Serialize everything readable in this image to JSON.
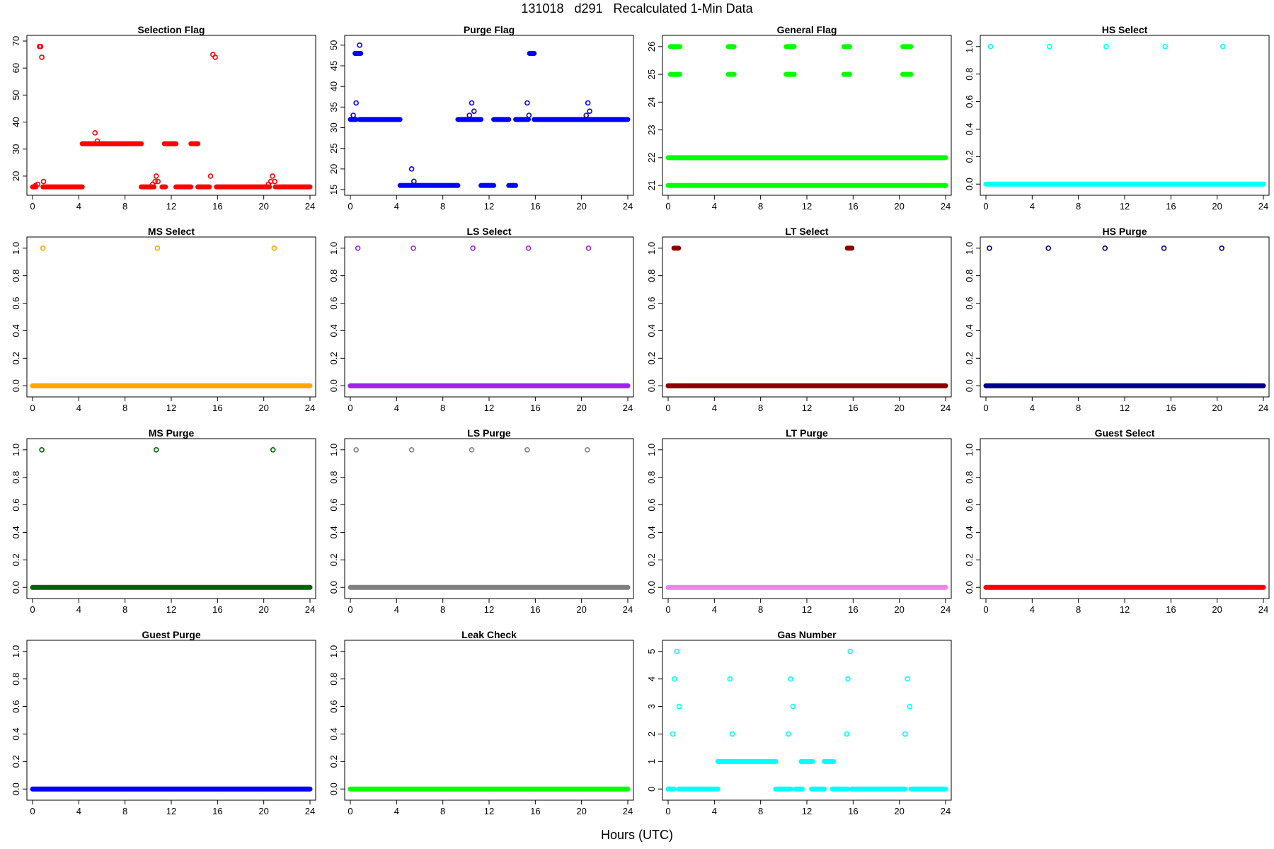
{
  "page": {
    "title": "131018   d291   Recalculated 1-Min Data",
    "xlabel": "Hours (UTC)"
  },
  "chart_data": [
    {
      "type": "scatter",
      "title": "Selection Flag",
      "color": "#ff0000",
      "xlim": [
        0,
        24
      ],
      "ylim": [
        15,
        70
      ],
      "x_ticks": [
        "0",
        "4",
        "8",
        "12",
        "16",
        "20",
        "24"
      ],
      "y_ticks": [
        "20",
        "30",
        "40",
        "50",
        "60",
        "70"
      ],
      "runs": [
        {
          "y": 16,
          "x": [
            [
              0.0,
              0.3
            ],
            [
              0.9,
              4.3
            ],
            [
              9.4,
              10.5
            ],
            [
              11.2,
              11.5
            ],
            [
              12.4,
              13.7
            ],
            [
              14.3,
              15.3
            ],
            [
              15.9,
              20.5
            ],
            [
              21.0,
              24.0
            ]
          ]
        },
        {
          "y": 32,
          "x": [
            [
              4.3,
              9.4
            ],
            [
              11.4,
              12.4
            ],
            [
              13.7,
              14.3
            ]
          ]
        }
      ],
      "points": [
        [
          0.25,
          16.5
        ],
        [
          0.45,
          17
        ],
        [
          0.6,
          68
        ],
        [
          0.7,
          68
        ],
        [
          0.8,
          64
        ],
        [
          0.95,
          18
        ],
        [
          5.4,
          36
        ],
        [
          5.6,
          33
        ],
        [
          10.4,
          17
        ],
        [
          10.6,
          18
        ],
        [
          10.7,
          20
        ],
        [
          10.85,
          18
        ],
        [
          15.4,
          20
        ],
        [
          15.6,
          65
        ],
        [
          15.8,
          64
        ],
        [
          20.4,
          17
        ],
        [
          20.6,
          18
        ],
        [
          20.75,
          20
        ],
        [
          20.95,
          18
        ]
      ]
    },
    {
      "type": "scatter",
      "title": "Purge Flag",
      "color": "#0000ff",
      "xlim": [
        0,
        24
      ],
      "ylim": [
        15,
        51
      ],
      "x_ticks": [
        "0",
        "4",
        "8",
        "12",
        "16",
        "20",
        "24"
      ],
      "y_ticks": [
        "15",
        "20",
        "25",
        "30",
        "35",
        "40",
        "45",
        "50"
      ],
      "runs": [
        {
          "y": 32,
          "x": [
            [
              0.0,
              0.5
            ],
            [
              0.8,
              4.3
            ],
            [
              9.3,
              11.3
            ],
            [
              12.4,
              13.7
            ],
            [
              14.3,
              15.4
            ],
            [
              15.9,
              24.0
            ]
          ]
        },
        {
          "y": 16,
          "x": [
            [
              4.3,
              9.3
            ],
            [
              11.3,
              12.4
            ],
            [
              13.7,
              14.3
            ]
          ]
        },
        {
          "y": 48,
          "x": [
            [
              0.4,
              0.9
            ],
            [
              15.5,
              15.9
            ]
          ]
        }
      ],
      "points": [
        [
          0.25,
          33
        ],
        [
          0.5,
          36
        ],
        [
          0.8,
          50
        ],
        [
          5.3,
          20
        ],
        [
          5.5,
          17
        ],
        [
          10.3,
          33
        ],
        [
          10.5,
          36
        ],
        [
          10.7,
          34
        ],
        [
          15.3,
          36
        ],
        [
          15.45,
          33
        ],
        [
          20.4,
          33
        ],
        [
          20.55,
          36
        ],
        [
          20.7,
          34
        ]
      ]
    },
    {
      "type": "scatter",
      "title": "General Flag",
      "color": "#00ff00",
      "xlim": [
        0,
        24
      ],
      "ylim": [
        20.85,
        26.2
      ],
      "x_ticks": [
        "0",
        "4",
        "8",
        "12",
        "16",
        "20",
        "24"
      ],
      "y_ticks": [
        "21",
        "22",
        "23",
        "24",
        "25",
        "26"
      ],
      "runs": [
        {
          "y": 21,
          "x": [
            [
              0.0,
              24.0
            ]
          ]
        },
        {
          "y": 22,
          "x": [
            [
              0.0,
              0.6
            ],
            [
              0.8,
              24.0
            ]
          ]
        },
        {
          "y": 26,
          "x": [
            [
              0.2,
              1.0
            ],
            [
              5.2,
              5.7
            ],
            [
              10.2,
              10.9
            ],
            [
              15.2,
              15.7
            ],
            [
              20.3,
              21.0
            ]
          ]
        },
        {
          "y": 25,
          "x": [
            [
              0.2,
              1.0
            ],
            [
              5.2,
              5.7
            ],
            [
              10.2,
              10.9
            ],
            [
              15.2,
              15.7
            ],
            [
              20.3,
              21.0
            ]
          ]
        }
      ],
      "points": []
    },
    {
      "type": "scatter",
      "title": "HS Select",
      "color": "#00ffff",
      "xlim": [
        0,
        24
      ],
      "ylim": [
        -0.04,
        1.04
      ],
      "x_ticks": [
        "0",
        "4",
        "8",
        "12",
        "16",
        "20",
        "24"
      ],
      "y_ticks": [
        "0.0",
        "0.2",
        "0.4",
        "0.6",
        "0.8",
        "1.0"
      ],
      "runs": [
        {
          "y": 0,
          "x": [
            [
              0.0,
              24.0
            ]
          ]
        }
      ],
      "points": [
        [
          0.4,
          1
        ],
        [
          5.5,
          1
        ],
        [
          10.4,
          1
        ],
        [
          15.5,
          1
        ],
        [
          20.5,
          1
        ]
      ]
    },
    {
      "type": "scatter",
      "title": "MS Select",
      "color": "#ffa500",
      "xlim": [
        0,
        24
      ],
      "ylim": [
        -0.04,
        1.04
      ],
      "x_ticks": [
        "0",
        "4",
        "8",
        "12",
        "16",
        "20",
        "24"
      ],
      "y_ticks": [
        "0.0",
        "0.2",
        "0.4",
        "0.6",
        "0.8",
        "1.0"
      ],
      "runs": [
        {
          "y": 0,
          "x": [
            [
              0.0,
              24.0
            ]
          ]
        }
      ],
      "points": [
        [
          0.9,
          1
        ],
        [
          10.8,
          1
        ],
        [
          20.9,
          1
        ]
      ]
    },
    {
      "type": "scatter",
      "title": "LS Select",
      "color": "#a020f0",
      "xlim": [
        0,
        24
      ],
      "ylim": [
        -0.04,
        1.04
      ],
      "x_ticks": [
        "0",
        "4",
        "8",
        "12",
        "16",
        "20",
        "24"
      ],
      "y_ticks": [
        "0.0",
        "0.2",
        "0.4",
        "0.6",
        "0.8",
        "1.0"
      ],
      "runs": [
        {
          "y": 0,
          "x": [
            [
              0.0,
              24.0
            ]
          ]
        }
      ],
      "points": [
        [
          0.65,
          1
        ],
        [
          5.45,
          1
        ],
        [
          10.6,
          1
        ],
        [
          15.4,
          1
        ],
        [
          20.6,
          1
        ]
      ]
    },
    {
      "type": "scatter",
      "title": "LT Select",
      "color": "#8b0000",
      "xlim": [
        0,
        24
      ],
      "ylim": [
        -0.04,
        1.04
      ],
      "x_ticks": [
        "0",
        "4",
        "8",
        "12",
        "16",
        "20",
        "24"
      ],
      "y_ticks": [
        "0.0",
        "0.2",
        "0.4",
        "0.6",
        "0.8",
        "1.0"
      ],
      "runs": [
        {
          "y": 0,
          "x": [
            [
              0.0,
              24.0
            ]
          ]
        },
        {
          "y": 1,
          "x": [
            [
              0.5,
              0.9
            ],
            [
              15.5,
              15.9
            ]
          ]
        }
      ],
      "points": []
    },
    {
      "type": "scatter",
      "title": "HS Purge",
      "color": "#00008b",
      "xlim": [
        0,
        24
      ],
      "ylim": [
        -0.04,
        1.04
      ],
      "x_ticks": [
        "0",
        "4",
        "8",
        "12",
        "16",
        "20",
        "24"
      ],
      "y_ticks": [
        "0.0",
        "0.2",
        "0.4",
        "0.6",
        "0.8",
        "1.0"
      ],
      "runs": [
        {
          "y": 0,
          "x": [
            [
              0.0,
              24.0
            ]
          ]
        }
      ],
      "points": [
        [
          0.3,
          1
        ],
        [
          5.4,
          1
        ],
        [
          10.3,
          1
        ],
        [
          15.4,
          1
        ],
        [
          20.4,
          1
        ]
      ]
    },
    {
      "type": "scatter",
      "title": "MS Purge",
      "color": "#006400",
      "xlim": [
        0,
        24
      ],
      "ylim": [
        -0.04,
        1.04
      ],
      "x_ticks": [
        "0",
        "4",
        "8",
        "12",
        "16",
        "20",
        "24"
      ],
      "y_ticks": [
        "0.0",
        "0.2",
        "0.4",
        "0.6",
        "0.8",
        "1.0"
      ],
      "runs": [
        {
          "y": 0,
          "x": [
            [
              0.0,
              24.0
            ]
          ]
        }
      ],
      "points": [
        [
          0.8,
          1
        ],
        [
          10.7,
          1
        ],
        [
          20.8,
          1
        ]
      ]
    },
    {
      "type": "scatter",
      "title": "LS Purge",
      "color": "#808080",
      "xlim": [
        0,
        24
      ],
      "ylim": [
        -0.04,
        1.04
      ],
      "x_ticks": [
        "0",
        "4",
        "8",
        "12",
        "16",
        "20",
        "24"
      ],
      "y_ticks": [
        "0.0",
        "0.2",
        "0.4",
        "0.6",
        "0.8",
        "1.0"
      ],
      "runs": [
        {
          "y": 0,
          "x": [
            [
              0.0,
              24.0
            ]
          ]
        }
      ],
      "points": [
        [
          0.5,
          1
        ],
        [
          5.3,
          1
        ],
        [
          10.5,
          1
        ],
        [
          15.3,
          1
        ],
        [
          20.5,
          1
        ]
      ]
    },
    {
      "type": "scatter",
      "title": "LT Purge",
      "color": "#ee82ee",
      "xlim": [
        0,
        24
      ],
      "ylim": [
        -0.04,
        1.04
      ],
      "x_ticks": [
        "0",
        "4",
        "8",
        "12",
        "16",
        "20",
        "24"
      ],
      "y_ticks": [
        "0.0",
        "0.2",
        "0.4",
        "0.6",
        "0.8",
        "1.0"
      ],
      "runs": [
        {
          "y": 0,
          "x": [
            [
              0.0,
              24.0
            ]
          ]
        }
      ],
      "points": []
    },
    {
      "type": "scatter",
      "title": "Guest Select",
      "color": "#ff0000",
      "xlim": [
        0,
        24
      ],
      "ylim": [
        -0.04,
        1.04
      ],
      "x_ticks": [
        "0",
        "4",
        "8",
        "12",
        "16",
        "20",
        "24"
      ],
      "y_ticks": [
        "0.0",
        "0.2",
        "0.4",
        "0.6",
        "0.8",
        "1.0"
      ],
      "runs": [
        {
          "y": 0,
          "x": [
            [
              0.0,
              24.0
            ]
          ]
        }
      ],
      "points": []
    },
    {
      "type": "scatter",
      "title": "Guest Purge",
      "color": "#0000ff",
      "xlim": [
        0,
        24
      ],
      "ylim": [
        -0.04,
        1.04
      ],
      "x_ticks": [
        "0",
        "4",
        "8",
        "12",
        "16",
        "20",
        "24"
      ],
      "y_ticks": [
        "0.0",
        "0.2",
        "0.4",
        "0.6",
        "0.8",
        "1.0"
      ],
      "runs": [
        {
          "y": 0,
          "x": [
            [
              0.0,
              24.0
            ]
          ]
        }
      ],
      "points": []
    },
    {
      "type": "scatter",
      "title": "Leak Check",
      "color": "#00ff00",
      "xlim": [
        0,
        24
      ],
      "ylim": [
        -0.04,
        1.04
      ],
      "x_ticks": [
        "0",
        "4",
        "8",
        "12",
        "16",
        "20",
        "24"
      ],
      "y_ticks": [
        "0.0",
        "0.2",
        "0.4",
        "0.6",
        "0.8",
        "1.0"
      ],
      "runs": [
        {
          "y": 0,
          "x": [
            [
              0.0,
              24.0
            ]
          ]
        }
      ],
      "points": []
    },
    {
      "type": "scatter",
      "title": "Gas Number",
      "color": "#00ffff",
      "xlim": [
        0,
        24
      ],
      "ylim": [
        -0.2,
        5.2
      ],
      "x_ticks": [
        "0",
        "4",
        "8",
        "12",
        "16",
        "20",
        "24"
      ],
      "y_ticks": [
        "0",
        "1",
        "2",
        "3",
        "4",
        "5"
      ],
      "runs": [
        {
          "y": 0,
          "x": [
            [
              0.0,
              0.5
            ],
            [
              0.9,
              4.3
            ],
            [
              9.3,
              10.6
            ],
            [
              11.0,
              11.6
            ],
            [
              12.4,
              13.5
            ],
            [
              14.2,
              15.5
            ],
            [
              15.9,
              20.5
            ],
            [
              21.0,
              24.0
            ]
          ]
        },
        {
          "y": 1,
          "x": [
            [
              4.3,
              9.3
            ],
            [
              11.5,
              12.5
            ],
            [
              13.5,
              14.3
            ]
          ]
        }
      ],
      "points": [
        [
          0.4,
          2
        ],
        [
          0.55,
          4
        ],
        [
          0.75,
          5
        ],
        [
          0.95,
          3
        ],
        [
          5.35,
          4
        ],
        [
          5.55,
          2
        ],
        [
          10.4,
          2
        ],
        [
          10.6,
          4
        ],
        [
          10.8,
          3
        ],
        [
          15.45,
          2
        ],
        [
          15.55,
          4
        ],
        [
          15.75,
          5
        ],
        [
          20.5,
          2
        ],
        [
          20.7,
          4
        ],
        [
          20.9,
          3
        ]
      ]
    }
  ]
}
